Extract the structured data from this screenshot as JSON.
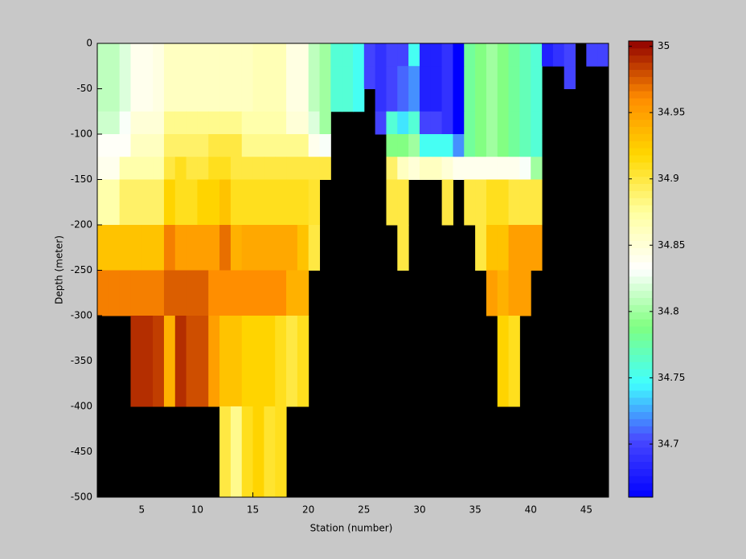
{
  "chart_data": {
    "type": "heatmap",
    "xlabel": "Station (number)",
    "ylabel": "Depth (meter)",
    "x_edges": [
      1,
      2,
      3,
      4,
      5,
      6,
      7,
      8,
      9,
      10,
      11,
      12,
      13,
      14,
      15,
      16,
      17,
      18,
      19,
      20,
      21,
      22,
      23,
      24,
      25,
      26,
      27,
      28,
      29,
      30,
      31,
      32,
      33,
      34,
      35,
      36,
      37,
      38,
      39,
      40,
      41,
      42,
      43,
      44,
      45,
      46,
      47
    ],
    "y_edges": [
      0,
      -25,
      -50,
      -75,
      -100,
      -125,
      -150,
      -200,
      -250,
      -300,
      -400,
      -500
    ],
    "z": [
      [
        34.81,
        34.81,
        34.82,
        34.84,
        34.84,
        34.845,
        34.86,
        34.86,
        34.86,
        34.86,
        34.86,
        34.86,
        34.86,
        34.86,
        34.865,
        34.865,
        34.865,
        34.845,
        34.845,
        34.81,
        34.8,
        34.76,
        34.76,
        34.75,
        34.7,
        34.69,
        34.7,
        34.7,
        34.75,
        34.68,
        34.68,
        34.69,
        34.66,
        34.78,
        34.79,
        34.8,
        34.79,
        34.78,
        34.77,
        34.76,
        34.68,
        34.69,
        34.7,
        null,
        34.7,
        34.7
      ],
      [
        34.81,
        34.81,
        34.82,
        34.84,
        34.84,
        34.845,
        34.86,
        34.86,
        34.86,
        34.86,
        34.86,
        34.86,
        34.86,
        34.86,
        34.865,
        34.865,
        34.865,
        34.845,
        34.845,
        34.81,
        34.8,
        34.76,
        34.76,
        34.75,
        34.7,
        34.69,
        34.7,
        34.71,
        34.72,
        34.68,
        34.68,
        34.69,
        34.66,
        34.78,
        34.79,
        34.8,
        34.79,
        34.78,
        34.77,
        34.76,
        null,
        null,
        34.7,
        null,
        null,
        null
      ],
      [
        34.81,
        34.81,
        34.82,
        34.84,
        34.84,
        34.845,
        34.86,
        34.86,
        34.86,
        34.86,
        34.86,
        34.86,
        34.86,
        34.86,
        34.865,
        34.865,
        34.865,
        34.845,
        34.845,
        34.81,
        34.8,
        34.76,
        34.76,
        34.75,
        null,
        34.69,
        34.7,
        34.71,
        34.72,
        34.68,
        34.68,
        34.69,
        34.66,
        34.78,
        34.79,
        34.8,
        34.79,
        34.78,
        34.77,
        34.76,
        null,
        null,
        null,
        null,
        null,
        null
      ],
      [
        34.815,
        34.815,
        34.83,
        34.85,
        34.85,
        34.85,
        34.88,
        34.88,
        34.88,
        34.88,
        34.88,
        34.88,
        34.88,
        34.87,
        34.87,
        34.87,
        34.87,
        34.85,
        34.85,
        34.82,
        34.8,
        null,
        null,
        null,
        null,
        34.7,
        34.76,
        34.74,
        34.76,
        34.7,
        34.7,
        34.69,
        34.66,
        34.78,
        34.79,
        34.8,
        34.79,
        34.78,
        34.77,
        34.76,
        null,
        null,
        null,
        null,
        null,
        null
      ],
      [
        34.835,
        34.835,
        34.835,
        34.86,
        34.86,
        34.86,
        34.89,
        34.89,
        34.89,
        34.89,
        34.9,
        34.9,
        34.9,
        34.88,
        34.88,
        34.88,
        34.88,
        34.88,
        34.88,
        34.84,
        34.83,
        null,
        null,
        null,
        null,
        null,
        34.79,
        34.79,
        34.8,
        34.75,
        34.75,
        34.75,
        34.72,
        34.78,
        34.79,
        34.8,
        34.79,
        34.78,
        34.77,
        34.76,
        null,
        null,
        null,
        null,
        null,
        null
      ],
      [
        34.84,
        34.84,
        34.87,
        34.87,
        34.87,
        34.87,
        34.9,
        34.91,
        34.9,
        34.9,
        34.91,
        34.91,
        34.9,
        34.9,
        34.9,
        34.9,
        34.9,
        34.9,
        34.9,
        34.9,
        34.9,
        null,
        null,
        null,
        null,
        null,
        34.89,
        34.86,
        34.85,
        34.86,
        34.86,
        34.85,
        34.84,
        34.84,
        34.84,
        34.84,
        34.84,
        34.84,
        34.83,
        34.8,
        null,
        null,
        null,
        null,
        null,
        null
      ],
      [
        34.87,
        34.87,
        34.89,
        34.89,
        34.89,
        34.89,
        34.92,
        34.91,
        34.91,
        34.92,
        34.92,
        34.93,
        34.91,
        34.91,
        34.91,
        34.91,
        34.91,
        34.91,
        34.91,
        34.905,
        null,
        null,
        null,
        null,
        null,
        null,
        34.9,
        34.9,
        null,
        null,
        null,
        34.9,
        null,
        34.9,
        34.9,
        34.91,
        34.91,
        34.9,
        34.9,
        34.9,
        null,
        null,
        null,
        null,
        null,
        null
      ],
      [
        34.93,
        34.93,
        34.93,
        34.93,
        34.93,
        34.93,
        34.965,
        34.95,
        34.95,
        34.95,
        34.95,
        34.97,
        34.94,
        34.945,
        34.945,
        34.945,
        34.945,
        34.945,
        34.93,
        34.9,
        null,
        null,
        null,
        null,
        null,
        null,
        null,
        34.9,
        null,
        null,
        null,
        null,
        null,
        null,
        34.9,
        34.93,
        34.93,
        34.95,
        34.95,
        34.95,
        null,
        null,
        null,
        null,
        null,
        null
      ],
      [
        34.965,
        34.965,
        34.965,
        34.965,
        34.965,
        34.965,
        34.975,
        34.975,
        34.975,
        34.975,
        34.96,
        34.96,
        34.96,
        34.96,
        34.96,
        34.96,
        34.96,
        34.94,
        34.94,
        null,
        null,
        null,
        null,
        null,
        null,
        null,
        null,
        null,
        null,
        null,
        null,
        null,
        null,
        null,
        null,
        34.95,
        34.94,
        34.95,
        34.95,
        null,
        null,
        null,
        null,
        null,
        null,
        null
      ],
      [
        null,
        null,
        null,
        34.99,
        34.99,
        34.985,
        34.94,
        34.99,
        34.98,
        34.98,
        34.95,
        34.93,
        34.93,
        34.92,
        34.92,
        34.92,
        34.91,
        34.9,
        34.91,
        null,
        null,
        null,
        null,
        null,
        null,
        null,
        null,
        null,
        null,
        null,
        null,
        null,
        null,
        null,
        null,
        null,
        34.92,
        34.91,
        null,
        null,
        null,
        null,
        null,
        null,
        null,
        null
      ],
      [
        null,
        null,
        null,
        null,
        null,
        null,
        null,
        null,
        null,
        null,
        null,
        34.9,
        34.88,
        34.91,
        34.92,
        34.905,
        34.91,
        null,
        null,
        null,
        null,
        null,
        null,
        null,
        null,
        null,
        null,
        null,
        null,
        null,
        null,
        null,
        null,
        null,
        null,
        null,
        null,
        null,
        null,
        null,
        null,
        null,
        null,
        null,
        null,
        null
      ]
    ],
    "xlim": [
      1,
      47
    ],
    "ylim": [
      -500,
      0
    ],
    "xticks": [
      5,
      10,
      15,
      20,
      25,
      30,
      35,
      40,
      45
    ],
    "yticks": [
      0,
      -50,
      -100,
      -150,
      -200,
      -250,
      -300,
      -350,
      -400,
      -450,
      -500
    ],
    "clim": [
      34.66,
      35.004
    ],
    "colorbar_ticks": [
      34.7,
      34.75,
      34.8,
      34.85,
      34.9,
      34.95,
      35
    ],
    "colormap": [
      "#0000ff",
      "#4848ff",
      "#40ffff",
      "#80ff80",
      "#ffffff",
      "#ffffa0",
      "#ffd800",
      "#ff8c00",
      "#900000"
    ],
    "missing_color": "#000000"
  }
}
